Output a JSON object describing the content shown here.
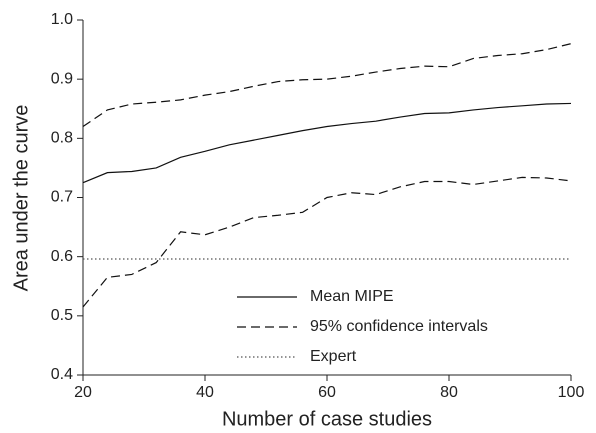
{
  "chart_data": {
    "type": "line",
    "xlabel": "Number of case studies",
    "ylabel": "Area under the curve",
    "x": [
      20,
      24,
      28,
      32,
      36,
      40,
      44,
      48,
      52,
      56,
      60,
      64,
      68,
      72,
      76,
      80,
      84,
      88,
      92,
      96,
      100
    ],
    "series": [
      {
        "name": "Mean MIPE",
        "color": "#111111",
        "dash": "solid",
        "values": [
          0.725,
          0.742,
          0.744,
          0.75,
          0.768,
          0.778,
          0.789,
          0.797,
          0.805,
          0.813,
          0.82,
          0.825,
          0.829,
          0.836,
          0.842,
          0.843,
          0.848,
          0.852,
          0.855,
          0.858,
          0.859
        ]
      },
      {
        "name": "95% confidence intervals",
        "color": "#111111",
        "dash": "dashed",
        "upper": [
          0.82,
          0.848,
          0.858,
          0.861,
          0.865,
          0.873,
          0.879,
          0.888,
          0.896,
          0.899,
          0.9,
          0.905,
          0.912,
          0.918,
          0.922,
          0.921,
          0.935,
          0.94,
          0.943,
          0.95,
          0.96
        ],
        "lower": [
          0.515,
          0.565,
          0.57,
          0.59,
          0.642,
          0.637,
          0.65,
          0.666,
          0.67,
          0.675,
          0.7,
          0.708,
          0.705,
          0.718,
          0.727,
          0.727,
          0.722,
          0.728,
          0.734,
          0.733,
          0.728
        ]
      },
      {
        "name": "Expert",
        "color": "#555555",
        "dash": "dotted",
        "values": [
          0.596,
          0.596,
          0.596,
          0.596,
          0.596,
          0.596,
          0.596,
          0.596,
          0.596,
          0.596,
          0.596,
          0.596,
          0.596,
          0.596,
          0.596,
          0.596,
          0.596,
          0.596,
          0.596,
          0.596,
          0.596
        ]
      }
    ],
    "xlim": [
      20,
      100
    ],
    "xticks": [
      20,
      40,
      60,
      80,
      100
    ],
    "ylim": [
      0.4,
      1
    ],
    "yticks": [
      0.4,
      0.5,
      0.6,
      0.7,
      0.8,
      0.9,
      {
        "value": 1,
        "label": "1.0"
      }
    ],
    "grid": false,
    "legend": "lower right"
  }
}
